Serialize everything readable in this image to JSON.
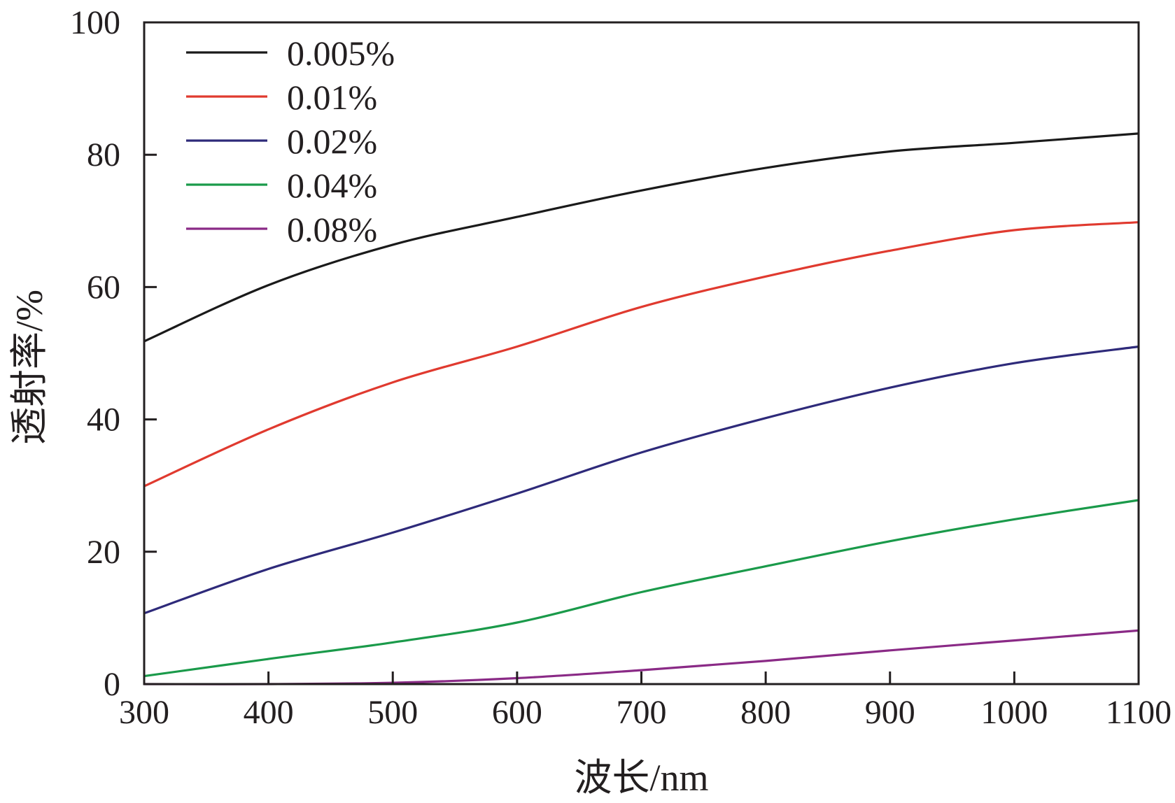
{
  "chart_data": {
    "type": "line",
    "title": "",
    "xlabel": "波长/nm",
    "ylabel": "透射率/%",
    "xlim": [
      300,
      1100
    ],
    "ylim": [
      0,
      100
    ],
    "xticks": [
      300,
      400,
      500,
      600,
      700,
      800,
      900,
      1000,
      1100
    ],
    "yticks": [
      0,
      20,
      40,
      60,
      80,
      100
    ],
    "xtick_labels": [
      "300",
      "400",
      "500",
      "600",
      "700",
      "800",
      "900",
      "1000",
      "1100"
    ],
    "ytick_labels": [
      "0",
      "20",
      "40",
      "60",
      "80",
      "100"
    ],
    "legend_position": "top-left",
    "grid": false,
    "x": [
      300,
      400,
      500,
      600,
      700,
      800,
      900,
      1000,
      1100
    ],
    "series": [
      {
        "name": "0.005%",
        "color": "#1a1a1a",
        "values": [
          51.8,
          60.3,
          66.4,
          70.6,
          74.6,
          78.0,
          80.5,
          81.8,
          83.2
        ]
      },
      {
        "name": "0.01%",
        "color": "#e03a2f",
        "values": [
          29.9,
          38.5,
          45.6,
          51.0,
          57.0,
          61.6,
          65.5,
          68.6,
          69.8
        ]
      },
      {
        "name": "0.02%",
        "color": "#2e2a7a",
        "values": [
          10.7,
          17.4,
          22.9,
          28.8,
          35.0,
          40.2,
          44.8,
          48.5,
          51.0
        ]
      },
      {
        "name": "0.04%",
        "color": "#1a9a4a",
        "values": [
          1.2,
          3.8,
          6.3,
          9.3,
          13.9,
          17.8,
          21.6,
          24.9,
          27.8
        ]
      },
      {
        "name": "0.08%",
        "color": "#8a2a86",
        "values": [
          0.0,
          0.0,
          0.2,
          0.9,
          2.1,
          3.5,
          5.1,
          6.6,
          8.1
        ]
      }
    ]
  }
}
